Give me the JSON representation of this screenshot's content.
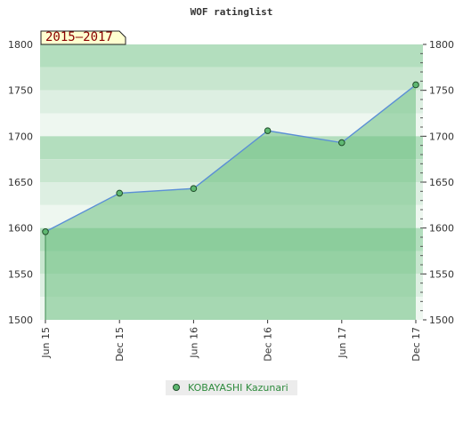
{
  "colors": {
    "band_light": "#c8e6cf",
    "band_mid": "#b3debe",
    "band_pale": "#ddefe2",
    "band_white": "#eef7f0",
    "fill_area": "#6cbf7f",
    "line": "#5b8fd6",
    "marker_fill": "#5fb872",
    "marker_stroke": "#1f4d2a",
    "badge_fill": "#ffffd0",
    "badge_text": "#8b0000",
    "legend_bg": "#ececec",
    "legend_text": "#2e8b3d"
  },
  "badge": {
    "label": "2015–2017"
  },
  "legend": {
    "series_label": "KOBAYASHI Kazunari",
    "marker_icon": "circle-marker-icon"
  },
  "chart_data": {
    "type": "area",
    "title": "WOF ratinglist",
    "xlabel": "",
    "ylabel": "",
    "x": [
      "Jun 15",
      "Dec 15",
      "Jun 16",
      "Dec 16",
      "Jun 17",
      "Dec 17"
    ],
    "series": [
      {
        "name": "KOBAYASHI Kazunari",
        "values": [
          1596,
          1638,
          1643,
          1706,
          1693,
          1756
        ]
      }
    ],
    "ylim": [
      1500,
      1800
    ],
    "yticks": [
      1500,
      1550,
      1600,
      1650,
      1700,
      1750,
      1800
    ],
    "grid": true,
    "legend_position": "bottom"
  }
}
